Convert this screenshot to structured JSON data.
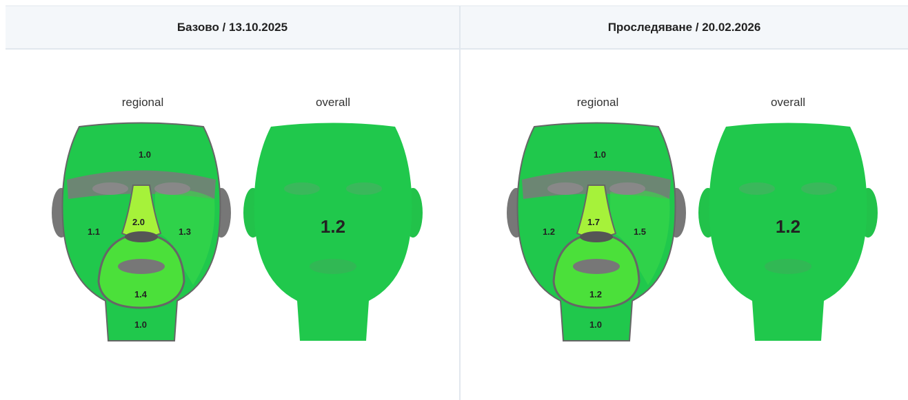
{
  "columns": [
    {
      "title": "Базово / 13.10.2025",
      "regional_label": "regional",
      "overall_label": "overall",
      "regions": {
        "forehead": "1.0",
        "nose": "2.0",
        "left_cheek": "1.1",
        "right_cheek": "1.3",
        "chin": "1.4",
        "neck": "1.0"
      },
      "overall": "1.2"
    },
    {
      "title": "Проследяване / 20.02.2026",
      "regional_label": "regional",
      "overall_label": "overall",
      "regions": {
        "forehead": "1.0",
        "nose": "1.7",
        "left_cheek": "1.2",
        "right_cheek": "1.5",
        "chin": "1.2",
        "neck": "1.0"
      },
      "overall": "1.2"
    }
  ]
}
